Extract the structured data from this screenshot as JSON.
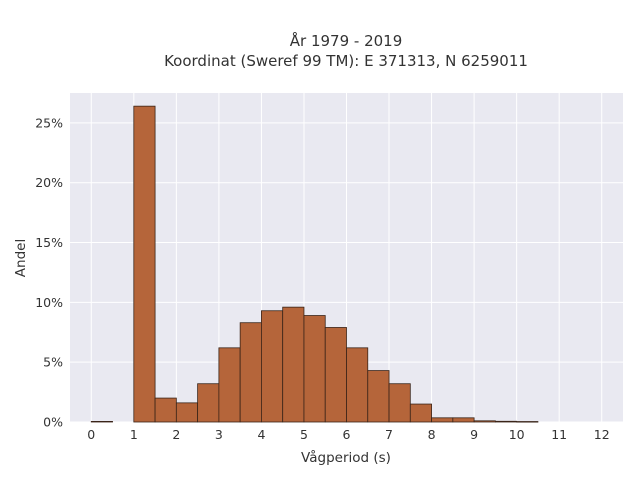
{
  "chart_data": {
    "type": "bar",
    "title": [
      "År 1979 - 2019",
      "Koordinat (Sweref 99 TM): E 371313, N 6259011"
    ],
    "xlabel": "Vågperiod (s)",
    "ylabel": "Andel",
    "xlim": [
      -0.5,
      12.5
    ],
    "ylim": [
      0,
      27.5
    ],
    "x_ticks": [
      0,
      1,
      2,
      3,
      4,
      5,
      6,
      7,
      8,
      9,
      10,
      11,
      12
    ],
    "y_ticks": [
      0,
      5,
      10,
      15,
      20,
      25
    ],
    "y_tick_labels": [
      "0%",
      "5%",
      "10%",
      "15%",
      "20%",
      "25%"
    ],
    "bin_width": 0.5,
    "bins": [
      {
        "start": 0.0,
        "value": 0.05
      },
      {
        "start": 1.0,
        "value": 26.4
      },
      {
        "start": 1.5,
        "value": 2.0
      },
      {
        "start": 2.0,
        "value": 1.6
      },
      {
        "start": 2.5,
        "value": 3.2
      },
      {
        "start": 3.0,
        "value": 6.2
      },
      {
        "start": 3.5,
        "value": 8.3
      },
      {
        "start": 4.0,
        "value": 9.3
      },
      {
        "start": 4.5,
        "value": 9.6
      },
      {
        "start": 5.0,
        "value": 8.9
      },
      {
        "start": 5.5,
        "value": 7.9
      },
      {
        "start": 6.0,
        "value": 6.2
      },
      {
        "start": 6.5,
        "value": 4.3
      },
      {
        "start": 7.0,
        "value": 3.2
      },
      {
        "start": 7.5,
        "value": 1.5
      },
      {
        "start": 8.0,
        "value": 0.35
      },
      {
        "start": 8.5,
        "value": 0.35
      },
      {
        "start": 9.0,
        "value": 0.1
      },
      {
        "start": 9.5,
        "value": 0.06
      },
      {
        "start": 10.0,
        "value": 0.04
      }
    ],
    "grid": true,
    "colors": {
      "bar_fill": "#b5653a",
      "bar_stroke": "#3a2418",
      "plot_bg": "#e9e9f1",
      "grid": "#ffffff",
      "text": "#333333"
    }
  }
}
